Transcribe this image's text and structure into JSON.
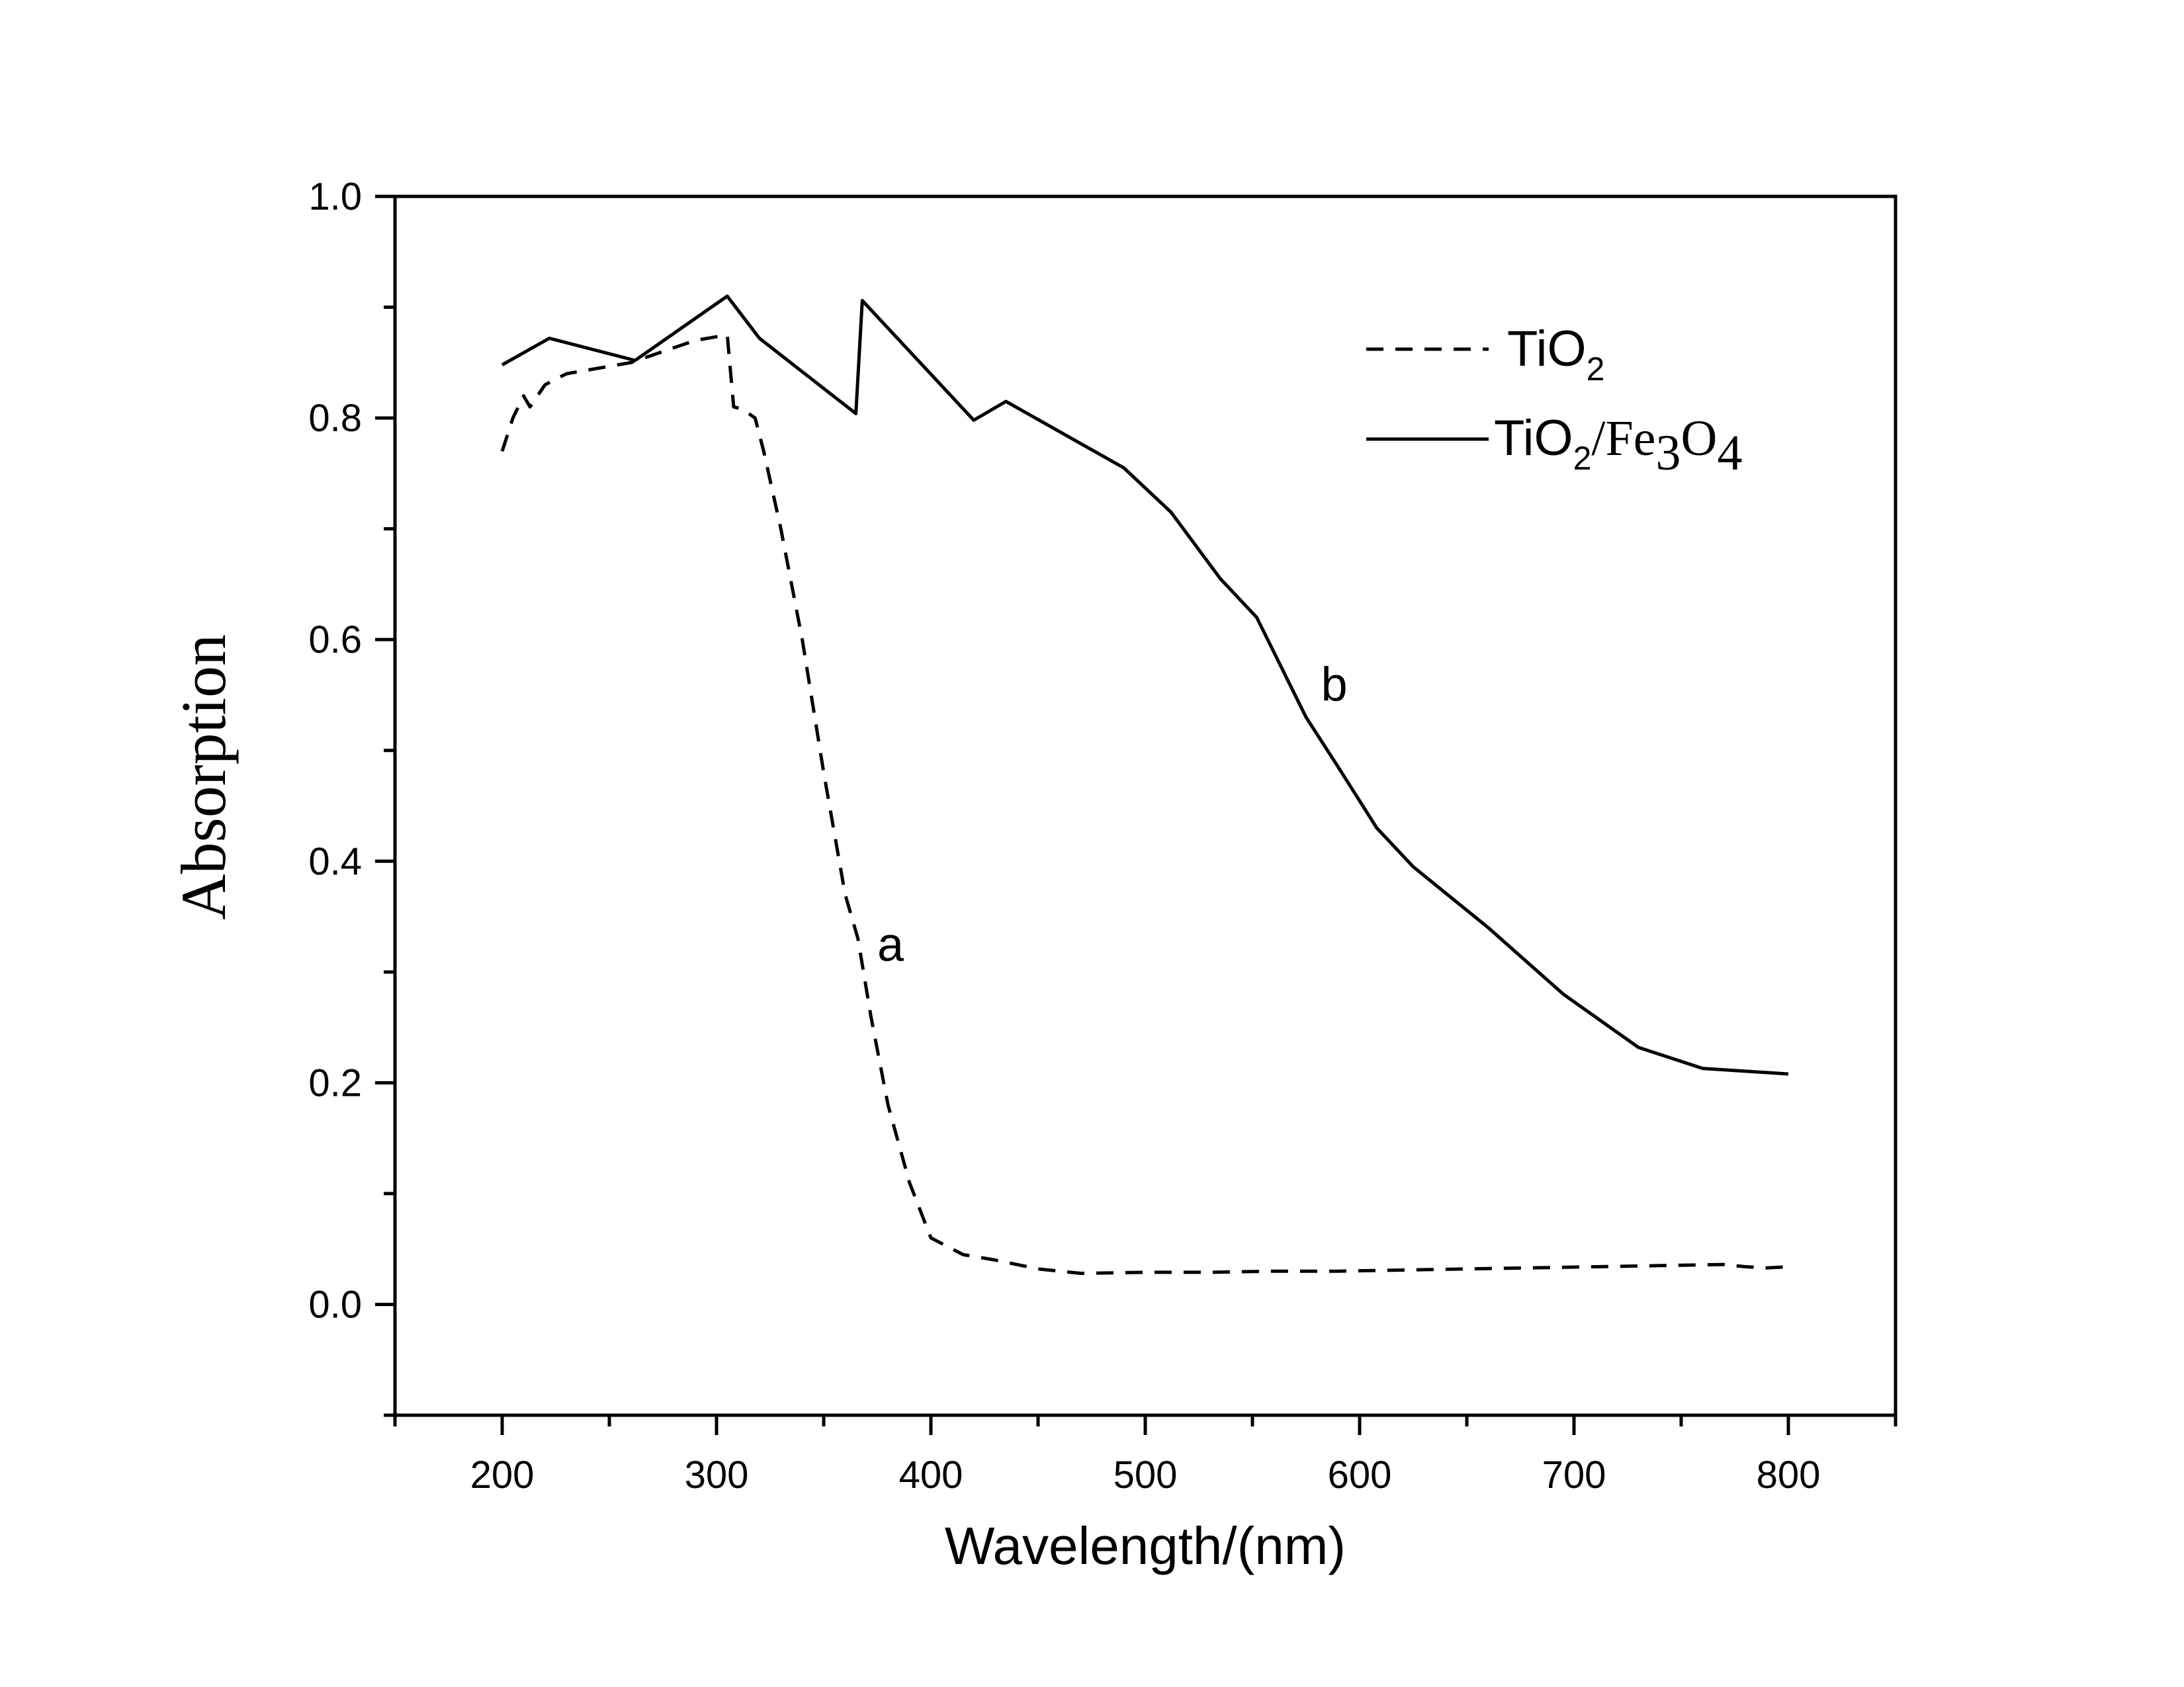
{
  "chart_data": {
    "type": "line",
    "xlabel": "Wavelength/(nm)",
    "ylabel": "Absorption",
    "xlim": [
      150,
      850
    ],
    "ylim": [
      -0.1,
      1.0
    ],
    "x_ticks": [
      200,
      300,
      400,
      500,
      600,
      700,
      800
    ],
    "y_ticks": [
      0.0,
      0.2,
      0.4,
      0.6,
      0.8,
      1.0
    ],
    "x_tick_labels": [
      "200",
      "300",
      "400",
      "500",
      "600",
      "700",
      "800"
    ],
    "y_tick_labels": [
      "0.0",
      "0.2",
      "0.4",
      "0.6",
      "0.8",
      "1.0"
    ],
    "grid": false,
    "legend_position": "top-right",
    "series": [
      {
        "name": "TiO2",
        "line_style": "dashed",
        "color": "#000000",
        "label_text": "a",
        "label_x": 375,
        "label_y": 0.31,
        "x": [
          200,
          205,
          210,
          213,
          220,
          230,
          260,
          290,
          305,
          308,
          312,
          318,
          322,
          330,
          340,
          350,
          360,
          366,
          372,
          380,
          390,
          400,
          410,
          415,
          430,
          450,
          470,
          500,
          530,
          560,
          590,
          620,
          650,
          680,
          710,
          740,
          770,
          780,
          790,
          800
        ],
        "y": [
          0.77,
          0.8,
          0.82,
          0.81,
          0.83,
          0.84,
          0.85,
          0.87,
          0.875,
          0.81,
          0.808,
          0.8,
          0.77,
          0.7,
          0.6,
          0.48,
          0.37,
          0.33,
          0.26,
          0.18,
          0.11,
          0.06,
          0.05,
          0.045,
          0.04,
          0.032,
          0.028,
          0.029,
          0.029,
          0.03,
          0.03,
          0.031,
          0.032,
          0.033,
          0.034,
          0.035,
          0.036,
          0.034,
          0.033,
          0.034
        ]
      },
      {
        "name": "TiO2/Fe3O4",
        "line_style": "solid",
        "color": "#000000",
        "label_text": "b",
        "label_x": 582,
        "label_y": 0.545,
        "x": [
          200,
          222,
          262,
          305,
          320,
          365,
          368,
          420,
          435,
          490,
          512,
          535,
          552,
          575,
          590,
          608,
          625,
          660,
          695,
          730,
          760,
          800
        ],
        "y": [
          0.848,
          0.872,
          0.852,
          0.91,
          0.872,
          0.804,
          0.906,
          0.798,
          0.815,
          0.755,
          0.715,
          0.655,
          0.62,
          0.53,
          0.485,
          0.43,
          0.395,
          0.34,
          0.28,
          0.232,
          0.213,
          0.208
        ]
      }
    ],
    "legend": {
      "entries": [
        {
          "main": "TiO",
          "sub": "2",
          "rest": []
        },
        {
          "main": "TiO",
          "sub": "2",
          "rest": [
            {
              "t": "/Fe",
              "s": "3"
            },
            {
              "t": "O",
              "s": "4"
            }
          ]
        }
      ]
    }
  }
}
